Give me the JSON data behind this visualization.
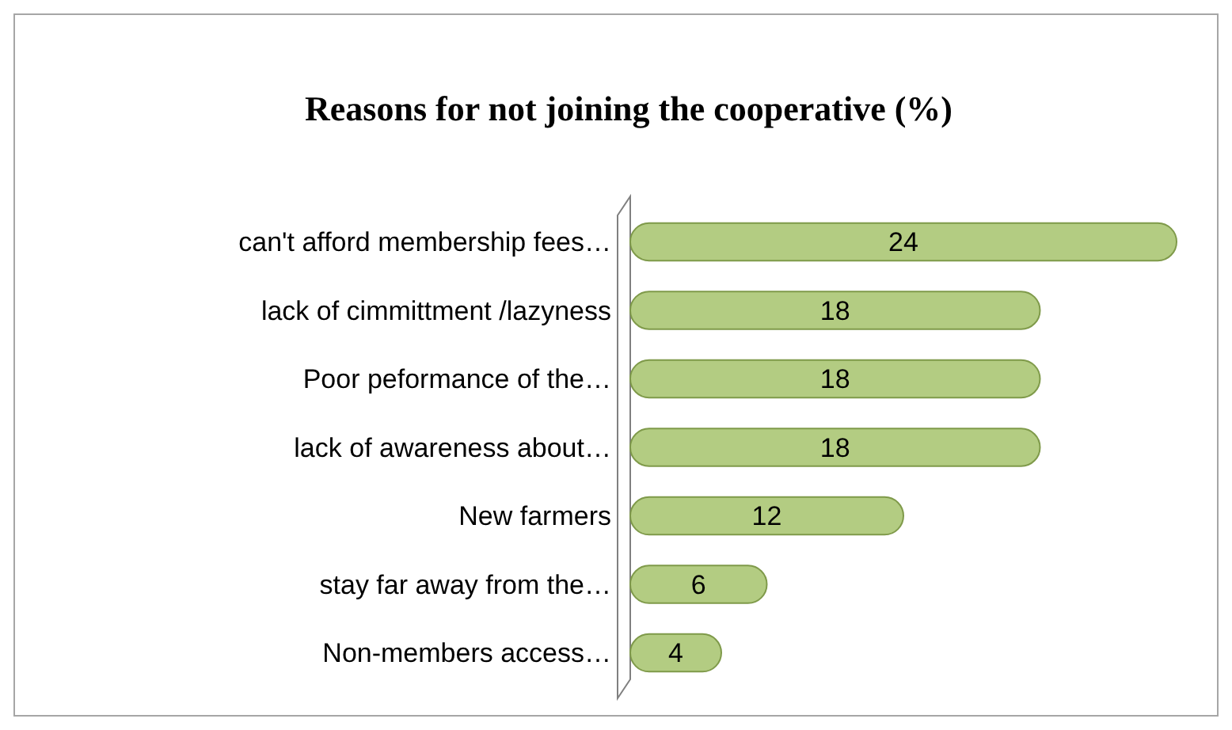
{
  "chart_data": {
    "type": "bar",
    "orientation": "horizontal",
    "title": "Reasons for not joining the cooperative (%)",
    "categories": [
      "can't afford membership fees…",
      "lack of cimmittment /lazyness",
      "Poor peformance of the…",
      "lack of awareness about…",
      "New farmers",
      "stay far away from the…",
      "Non-members access…"
    ],
    "values": [
      24,
      18,
      18,
      18,
      12,
      6,
      4
    ],
    "color": "#b3cc82",
    "data_labels": true
  }
}
